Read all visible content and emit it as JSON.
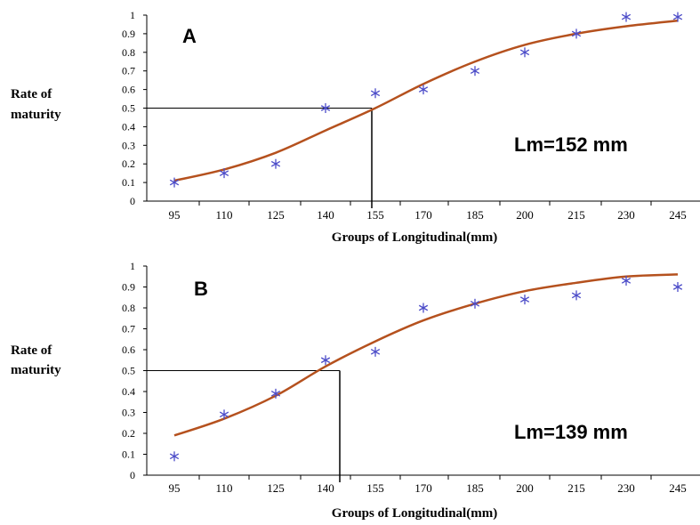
{
  "chart_data": [
    {
      "type": "scatter",
      "panel_label": "A",
      "annotation": "Lm=152 mm",
      "ylabel_line1": "Rate of",
      "ylabel_line2": "maturity",
      "xlabel": "Groups of Longitudinal(mm)",
      "categories": [
        "95",
        "110",
        "125",
        "140",
        "155",
        "170",
        "185",
        "200",
        "215",
        "230",
        "245"
      ],
      "y_ticks": [
        "0",
        "0.1",
        "0.2",
        "0.3",
        "0.4",
        "0.5",
        "0.6",
        "0.7",
        "0.8",
        "0.9",
        "1"
      ],
      "ylim": [
        0,
        1
      ],
      "observed": [
        0.1,
        0.15,
        0.2,
        0.5,
        0.58,
        0.6,
        0.7,
        0.8,
        0.9,
        0.99,
        0.99
      ],
      "fitted": [
        0.11,
        0.17,
        0.26,
        0.38,
        0.5,
        0.63,
        0.75,
        0.84,
        0.9,
        0.94,
        0.97
      ],
      "lm_value": 152,
      "marker_color": "#4b4bc8",
      "curve_color": "#b5511e"
    },
    {
      "type": "scatter",
      "panel_label": "B",
      "annotation": "Lm=139 mm",
      "ylabel_line1": "Rate of",
      "ylabel_line2": "maturity",
      "xlabel": "Groups of Longitudinal(mm)",
      "categories": [
        "95",
        "110",
        "125",
        "140",
        "155",
        "170",
        "185",
        "200",
        "215",
        "230",
        "245"
      ],
      "y_ticks": [
        "0",
        "0.1",
        "0.2",
        "0.3",
        "0.4",
        "0.5",
        "0.6",
        "0.7",
        "0.8",
        "0.9",
        "1"
      ],
      "ylim": [
        0,
        1
      ],
      "observed": [
        0.09,
        0.29,
        0.39,
        0.55,
        0.59,
        0.8,
        0.82,
        0.84,
        0.86,
        0.93,
        0.9
      ],
      "fitted": [
        0.19,
        0.27,
        0.38,
        0.52,
        0.64,
        0.74,
        0.82,
        0.88,
        0.92,
        0.95,
        0.96
      ],
      "lm_value": 139,
      "marker_color": "#4b4bc8",
      "curve_color": "#b5511e"
    }
  ]
}
